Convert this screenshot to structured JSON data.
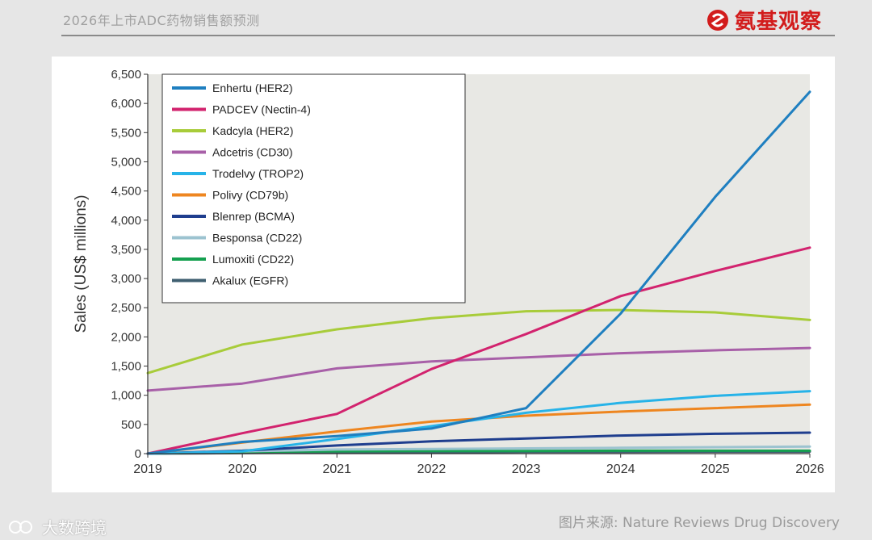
{
  "header": {
    "title": "2026年上市ADC药物销售额预测",
    "brand": "氨基观察",
    "brand_color": "#d21c1c"
  },
  "footer": {
    "source": "图片来源:  Nature Reviews Drug Discovery",
    "watermark": "大数跨境"
  },
  "chart_data": {
    "type": "line",
    "title": "",
    "xlabel": "",
    "ylabel": "Sales (US$ millions)",
    "x": [
      2019,
      2020,
      2021,
      2022,
      2023,
      2024,
      2025,
      2026
    ],
    "xlim": [
      2019,
      2026
    ],
    "ylim": [
      0,
      6500
    ],
    "yticks": [
      0,
      500,
      1000,
      1500,
      2000,
      2500,
      3000,
      3500,
      4000,
      4500,
      5000,
      5500,
      6000,
      6500
    ],
    "ytick_labels": [
      "0",
      "500",
      "1,000",
      "1,500",
      "2,000",
      "2,500",
      "3,000",
      "3,500",
      "4,000",
      "4,500",
      "5,000",
      "5,500",
      "6,000",
      "6,500"
    ],
    "grid": false,
    "legend_position": "top-left",
    "series": [
      {
        "name": "Enhertu (HER2)",
        "color": "#1f7fc0",
        "values": [
          0,
          200,
          300,
          430,
          780,
          2400,
          4400,
          6200
        ]
      },
      {
        "name": "PADCEV (Nectin-4)",
        "color": "#d2236e",
        "values": [
          0,
          350,
          680,
          1450,
          2050,
          2700,
          3130,
          3530
        ]
      },
      {
        "name": "Kadcyla (HER2)",
        "color": "#a8cc3a",
        "values": [
          1380,
          1870,
          2130,
          2320,
          2440,
          2460,
          2420,
          2290
        ]
      },
      {
        "name": "Adcetris (CD30)",
        "color": "#a860a8",
        "values": [
          1080,
          1200,
          1460,
          1580,
          1650,
          1720,
          1770,
          1810
        ]
      },
      {
        "name": "Trodelvy (TROP2)",
        "color": "#27b3e8",
        "values": [
          0,
          40,
          250,
          470,
          700,
          870,
          990,
          1070
        ]
      },
      {
        "name": "Polivy (CD79b)",
        "color": "#ee8620",
        "values": [
          0,
          190,
          380,
          550,
          650,
          720,
          780,
          840
        ]
      },
      {
        "name": "Blenrep (BCMA)",
        "color": "#1f3e8e",
        "values": [
          0,
          50,
          140,
          210,
          260,
          310,
          340,
          360
        ]
      },
      {
        "name": "Besponsa (CD22)",
        "color": "#9cc3d0",
        "values": [
          0,
          40,
          70,
          80,
          90,
          100,
          110,
          120
        ]
      },
      {
        "name": "Lumoxiti (CD22)",
        "color": "#15a050",
        "values": [
          0,
          30,
          40,
          45,
          45,
          50,
          50,
          50
        ]
      },
      {
        "name": "Akalux (EGFR)",
        "color": "#3f5f70",
        "values": [
          0,
          10,
          20,
          25,
          30,
          30,
          35,
          35
        ]
      }
    ]
  }
}
